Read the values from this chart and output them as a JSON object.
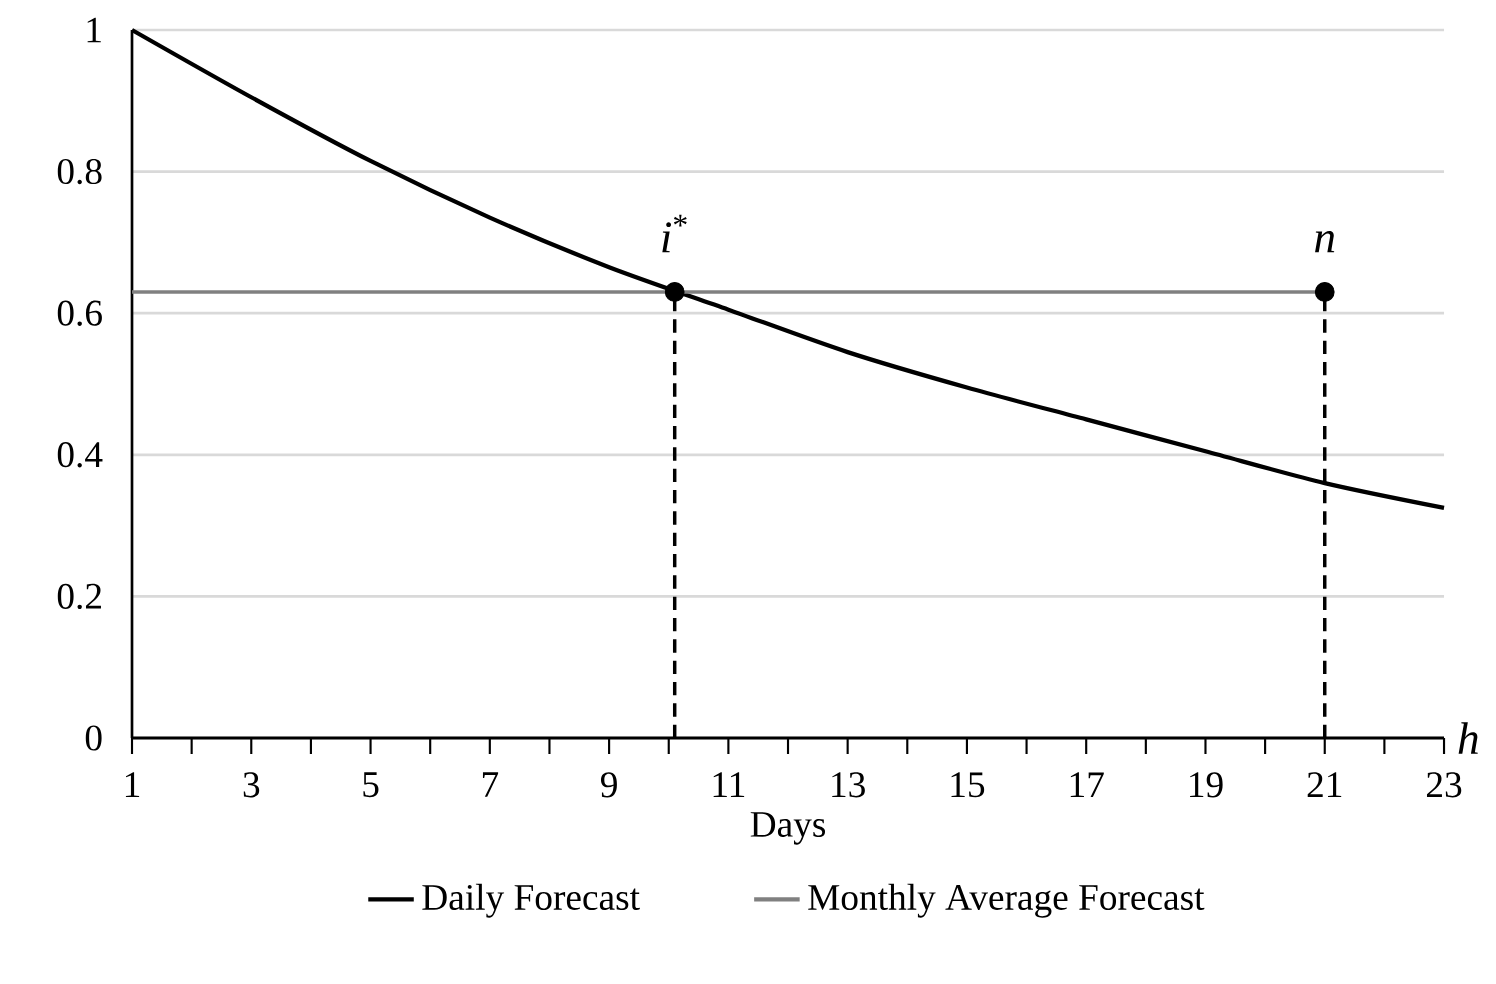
{
  "chart_data": {
    "type": "line",
    "xlabel": "Days",
    "x": [
      1,
      3,
      5,
      7,
      9,
      11,
      13,
      15,
      17,
      19,
      21,
      23
    ],
    "series": [
      {
        "name": "Daily Forecast",
        "color": "#000000",
        "values": [
          1,
          0.905,
          0.815,
          0.735,
          0.665,
          0.605,
          0.545,
          0.495,
          0.45,
          0.405,
          0.36,
          0.325
        ]
      },
      {
        "name": "Monthly Average Forecast",
        "color": "#808080",
        "x": [
          1,
          21
        ],
        "values": [
          0.63,
          0.63
        ]
      },
      {
        "color": "#000000",
        "x": [
          10.1,
          10.1
        ],
        "values": [
          0,
          0.63
        ],
        "line_style": "dashed"
      },
      {
        "color": "#000000",
        "x": [
          21,
          21
        ],
        "values": [
          0,
          0.63
        ],
        "line_style": "dashed"
      },
      {
        "type": "scatter",
        "color": "#000000",
        "x": [
          10.1,
          21
        ],
        "values": [
          0.63,
          0.63
        ],
        "marker": "circle"
      }
    ],
    "xlim": [
      1,
      23
    ],
    "xticks": [
      1,
      {
        "value": 2,
        "label": null
      },
      3,
      {
        "value": 4,
        "label": null
      },
      5,
      {
        "value": 6,
        "label": null
      },
      7,
      {
        "value": 8,
        "label": null
      },
      9,
      {
        "value": 10,
        "label": null
      },
      11,
      {
        "value": 12,
        "label": null
      },
      13,
      {
        "value": 14,
        "label": null
      },
      15,
      {
        "value": 16,
        "label": null
      },
      17,
      {
        "value": 18,
        "label": null
      },
      19,
      {
        "value": 20,
        "label": null
      },
      21,
      {
        "value": 22,
        "label": null
      },
      23
    ],
    "ylim": [
      0,
      1
    ],
    "yticks": [
      0,
      0.2,
      0.4,
      0.6,
      0.8,
      1
    ],
    "grid": "y",
    "legend": "bottom",
    "annotations": [
      {
        "text": "*i*$^{*}$",
        "x": 10.1,
        "y": 0.63
      },
      {
        "text": "*n*",
        "x": 21,
        "y": 0.63
      },
      "*h*"
    ]
  }
}
